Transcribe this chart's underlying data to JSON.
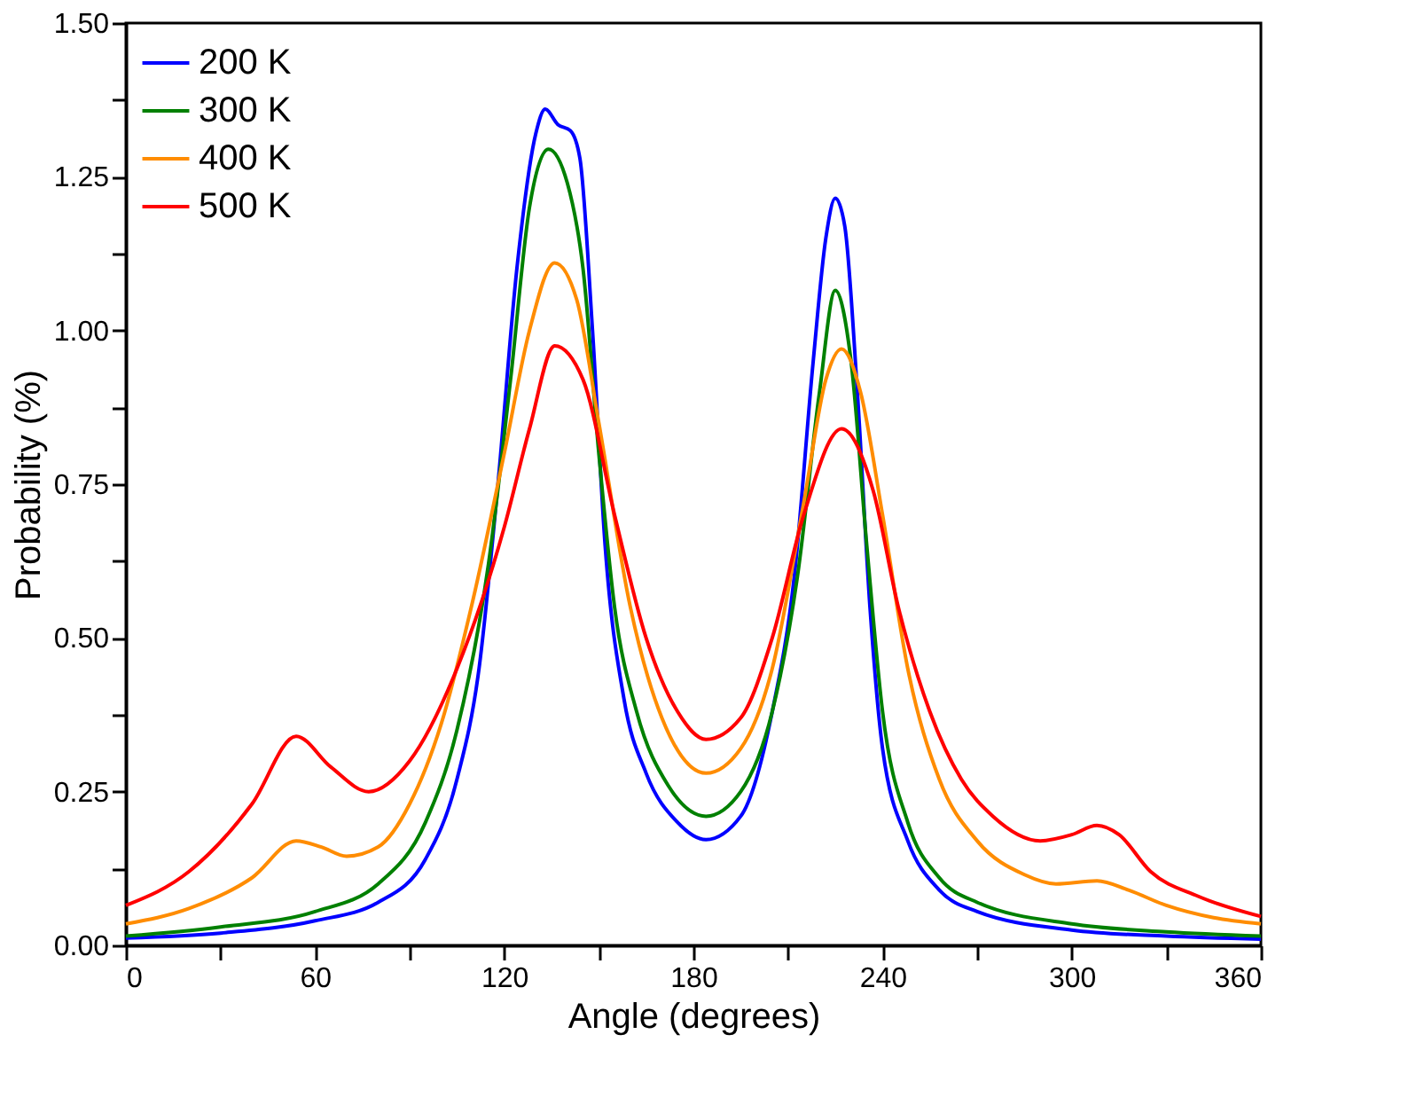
{
  "chart_data": {
    "type": "line",
    "xlabel": "Angle (degrees)",
    "ylabel": "Probability (%)",
    "xlim": [
      0,
      360
    ],
    "ylim": [
      0,
      1.5
    ],
    "xticks": [
      0,
      {
        "value": 30,
        "label": null
      },
      60,
      {
        "value": 90,
        "label": null
      },
      120,
      {
        "value": 150,
        "label": null
      },
      180,
      {
        "value": 210,
        "label": null
      },
      240,
      {
        "value": 270,
        "label": null
      },
      300,
      {
        "value": 330,
        "label": null
      },
      360
    ],
    "yticks": [
      {
        "value": 0,
        "label": "0.00"
      },
      {
        "value": 0.125,
        "label": null
      },
      {
        "value": 0.25,
        "label": "0.25"
      },
      {
        "value": 0.375,
        "label": null
      },
      {
        "value": 0.5,
        "label": "0.50"
      },
      {
        "value": 0.625,
        "label": null
      },
      {
        "value": 0.75,
        "label": "0.75"
      },
      {
        "value": 0.875,
        "label": null
      },
      {
        "value": 1.0,
        "label": "1.00"
      },
      {
        "value": 1.125,
        "label": null
      },
      {
        "value": 1.25,
        "label": "1.25"
      },
      {
        "value": 1.375,
        "label": null
      },
      {
        "value": 1.5,
        "label": "1.50"
      }
    ],
    "grid": false,
    "legend": "top left",
    "marker": "none",
    "line_style": "solid",
    "series": [
      {
        "name": "200 K",
        "color": "#0000ff",
        "x": [
          0,
          30,
          60,
          80,
          95,
          105,
          112,
          118,
          124,
          130,
          133,
          137,
          141,
          144,
          148,
          152,
          158,
          165,
          175,
          184,
          195,
          205,
          212,
          218,
          222,
          225,
          228,
          232,
          236,
          240,
          248,
          258,
          270,
          300,
          330,
          360
        ],
        "values": [
          0.012,
          0.02,
          0.04,
          0.07,
          0.14,
          0.27,
          0.45,
          0.75,
          1.1,
          1.32,
          1.36,
          1.335,
          1.325,
          1.28,
          1.0,
          0.65,
          0.4,
          0.28,
          0.2,
          0.172,
          0.21,
          0.38,
          0.6,
          0.95,
          1.15,
          1.215,
          1.17,
          0.9,
          0.55,
          0.32,
          0.17,
          0.09,
          0.055,
          0.025,
          0.015,
          0.01
        ]
      },
      {
        "name": "300 K",
        "color": "#008000",
        "x": [
          0,
          30,
          60,
          80,
          95,
          105,
          115,
          122,
          128,
          134,
          140,
          145,
          150,
          155,
          162,
          172,
          184,
          195,
          205,
          213,
          220,
          225,
          230,
          235,
          240,
          248,
          258,
          270,
          300,
          330,
          360
        ],
        "values": [
          0.015,
          0.03,
          0.055,
          0.1,
          0.2,
          0.35,
          0.62,
          0.92,
          1.2,
          1.295,
          1.24,
          1.1,
          0.8,
          0.55,
          0.38,
          0.26,
          0.21,
          0.25,
          0.38,
          0.6,
          0.9,
          1.065,
          0.95,
          0.65,
          0.38,
          0.2,
          0.11,
          0.07,
          0.035,
          0.022,
          0.015
        ]
      },
      {
        "name": "400 K",
        "color": "#ff8c00",
        "x": [
          0,
          20,
          40,
          54,
          62,
          70,
          80,
          90,
          100,
          110,
          120,
          128,
          136,
          143,
          150,
          160,
          170,
          184,
          195,
          205,
          215,
          222,
          227,
          233,
          240,
          248,
          258,
          270,
          285,
          295,
          308,
          318,
          330,
          345,
          360
        ],
        "values": [
          0.035,
          0.06,
          0.11,
          0.17,
          0.16,
          0.145,
          0.16,
          0.23,
          0.36,
          0.56,
          0.8,
          1.0,
          1.11,
          1.05,
          0.85,
          0.55,
          0.37,
          0.28,
          0.32,
          0.45,
          0.72,
          0.92,
          0.97,
          0.9,
          0.7,
          0.45,
          0.27,
          0.17,
          0.115,
          0.1,
          0.105,
          0.09,
          0.065,
          0.045,
          0.035
        ]
      },
      {
        "name": "500 K",
        "color": "#ff0000",
        "x": [
          0,
          20,
          40,
          54,
          65,
          77,
          90,
          105,
          120,
          128,
          136,
          145,
          155,
          165,
          175,
          184,
          195,
          205,
          215,
          227,
          237,
          245,
          255,
          265,
          275,
          290,
          300,
          308,
          315,
          325,
          340,
          360
        ],
        "values": [
          0.065,
          0.12,
          0.23,
          0.34,
          0.29,
          0.25,
          0.3,
          0.45,
          0.68,
          0.84,
          0.975,
          0.92,
          0.7,
          0.5,
          0.38,
          0.335,
          0.37,
          0.5,
          0.7,
          0.84,
          0.74,
          0.55,
          0.38,
          0.27,
          0.21,
          0.17,
          0.18,
          0.195,
          0.18,
          0.12,
          0.08,
          0.047
        ]
      }
    ]
  }
}
